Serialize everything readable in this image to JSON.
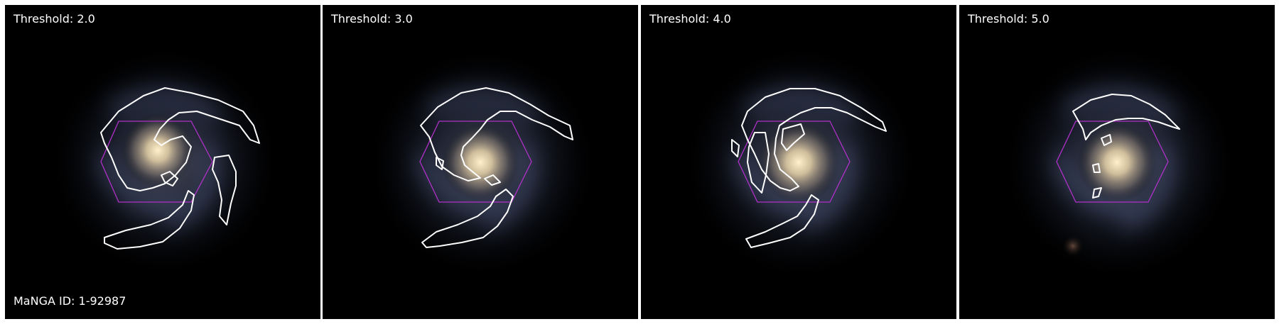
{
  "figure": {
    "panels": [
      {
        "label": "Threshold: 2.0"
      },
      {
        "label": "Threshold: 3.0"
      },
      {
        "label": "Threshold: 4.0"
      },
      {
        "label": "Threshold: 5.0"
      }
    ],
    "manga_id_label": "MaNGA ID: 1-92987"
  },
  "colors": {
    "background": "#000000",
    "contour": "#ffffff",
    "ifu_hexagon": "#b030c8",
    "galaxy_core": "#fff0c8",
    "spiral_arms": "#7a86b4"
  }
}
